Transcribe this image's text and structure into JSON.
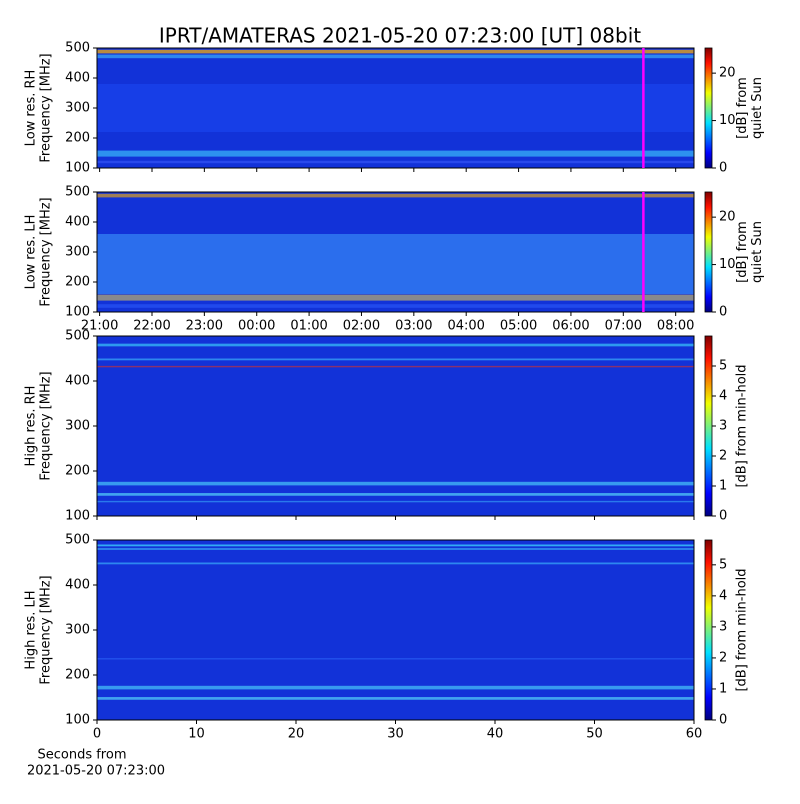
{
  "title": "IPRT/AMATERAS 2021-05-20 07:23:00 [UT]   08bit",
  "chart_data": [
    {
      "type": "heatmap",
      "ylabel": [
        "Low res. RH",
        "Frequency [MHz]"
      ],
      "ylim": [
        100,
        500
      ],
      "yticks": [
        100,
        200,
        300,
        400,
        500
      ],
      "xlim": [
        "20:57",
        "08:21"
      ],
      "cursor": "07:23",
      "cursor_color": "#ff00ff",
      "clim": [
        0,
        25.3
      ],
      "cticks": [
        0,
        10,
        20
      ],
      "clabel": [
        "[dB] from",
        "quiet Sun"
      ],
      "colormap": "jet"
    },
    {
      "type": "heatmap",
      "ylabel": [
        "Low res. LH",
        "Frequency [MHz]"
      ],
      "ylim": [
        100,
        500
      ],
      "yticks": [
        100,
        200,
        300,
        400,
        500
      ],
      "xlim": [
        "20:57",
        "08:21"
      ],
      "xticks": [
        "21:00",
        "22:00",
        "23:00",
        "00:00",
        "01:00",
        "02:00",
        "03:00",
        "04:00",
        "05:00",
        "06:00",
        "07:00",
        "08:00"
      ],
      "cursor": "07:23",
      "cursor_color": "#ff00ff",
      "clim": [
        0,
        25.3
      ],
      "cticks": [
        0,
        10,
        20
      ],
      "clabel": [
        "[dB] from",
        "quiet Sun"
      ],
      "colormap": "jet"
    },
    {
      "type": "heatmap",
      "ylabel": [
        "High res. RH",
        "Frequency [MHz]"
      ],
      "ylim": [
        100,
        500
      ],
      "yticks": [
        100,
        200,
        300,
        400,
        500
      ],
      "xlim": [
        0,
        60
      ],
      "clim": [
        0,
        6
      ],
      "cticks": [
        0,
        1,
        2,
        3,
        4,
        5
      ],
      "clabel": [
        "[dB] from min-hold"
      ],
      "colormap": "jet"
    },
    {
      "type": "heatmap",
      "ylabel": [
        "High res. LH",
        "Frequency [MHz]"
      ],
      "ylim": [
        100,
        500
      ],
      "yticks": [
        100,
        200,
        300,
        400,
        500
      ],
      "xlim": [
        0,
        60
      ],
      "xticks": [
        0,
        10,
        20,
        30,
        40,
        50,
        60
      ],
      "xlabel": [
        "Seconds from",
        "2021-05-20 07:23:00"
      ],
      "clim": [
        0,
        5.8
      ],
      "cticks": [
        0,
        1,
        2,
        3,
        4,
        5
      ],
      "clabel": [
        "[dB] from min-hold"
      ],
      "colormap": "jet"
    }
  ]
}
